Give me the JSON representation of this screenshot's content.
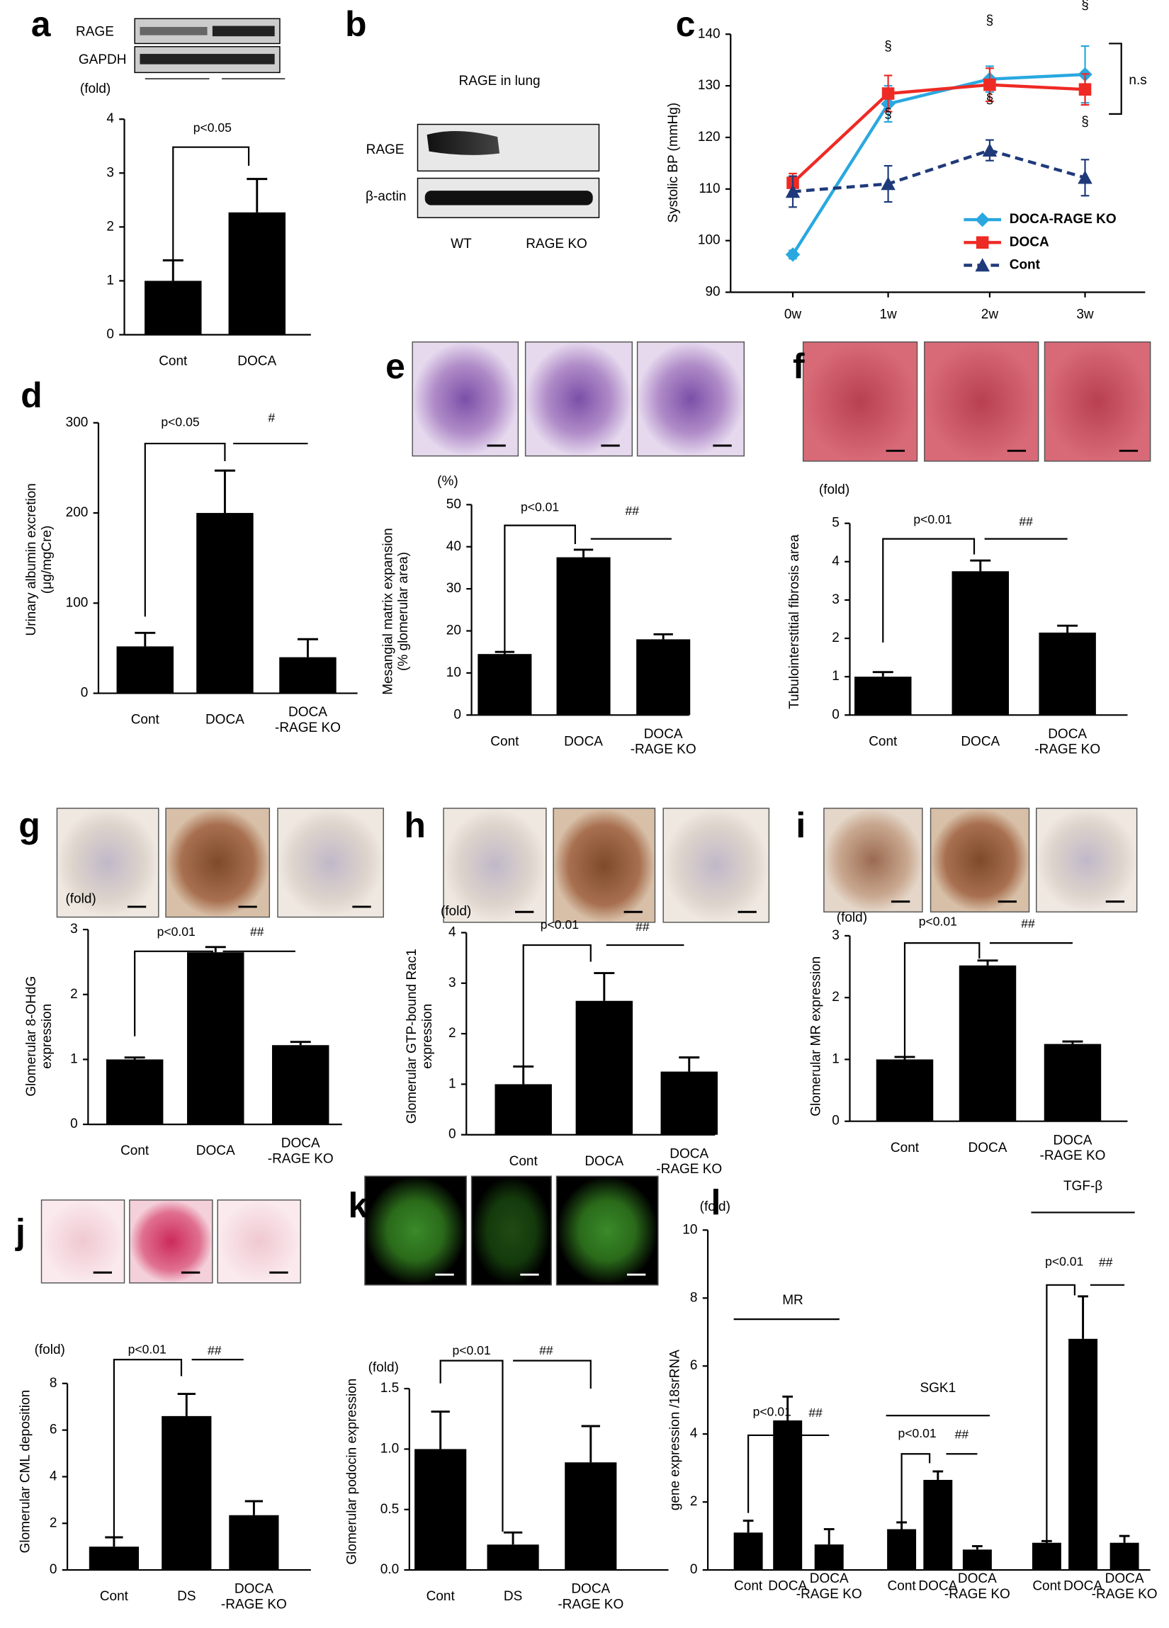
{
  "chart_data": [
    {
      "panel": "a",
      "type": "bar",
      "categories": [
        "Cont",
        "DOCA"
      ],
      "series": [
        {
          "values": [
            1.0,
            2.27
          ],
          "errors": [
            0.38,
            0.62
          ],
          "color": "#000000"
        }
      ],
      "ylim": [
        0,
        4
      ],
      "yticks": [
        0,
        1,
        2,
        3,
        4
      ],
      "unit": "(fold)",
      "annotations": [
        "p<0.05"
      ]
    },
    {
      "panel": "c",
      "type": "line",
      "categories": [
        "0w",
        "1w",
        "2w",
        "3w"
      ],
      "ylabel": "Systolic BP (mmHg)",
      "ylim": [
        90,
        140
      ],
      "yticks": [
        90,
        100,
        110,
        120,
        130,
        140
      ],
      "legend": "lower right",
      "series": [
        {
          "name": "DOCA-RAGE KO",
          "color": "#29a8e0",
          "marker": "diamond",
          "dashed": false,
          "values": [
            97.3,
            126.5,
            131.3,
            132.2
          ],
          "errors": [
            0.8,
            3.5,
            2.5,
            5.5
          ]
        },
        {
          "name": "DOCA",
          "color": "#ee2a24",
          "marker": "square",
          "dashed": false,
          "values": [
            111.2,
            128.5,
            130.2,
            129.3
          ],
          "errors": [
            1.8,
            3.5,
            3.2,
            3.0
          ]
        },
        {
          "name": "Cont",
          "color": "#1f3a7a",
          "marker": "triangle",
          "dashed": true,
          "values": [
            109.5,
            111.0,
            117.5,
            112.2
          ],
          "errors": [
            3.0,
            3.5,
            2.0,
            3.5
          ]
        }
      ],
      "annotations": [
        "§",
        "§",
        "§",
        "§",
        "§",
        "§",
        "n.s"
      ]
    },
    {
      "panel": "d",
      "type": "bar",
      "categories": [
        "Cont",
        "DOCA",
        "DOCA\n-RAGE KO"
      ],
      "series": [
        {
          "values": [
            52,
            200,
            40
          ],
          "errors": [
            15,
            47,
            20
          ],
          "color": "#000000"
        }
      ],
      "ylim": [
        0,
        300
      ],
      "yticks": [
        0,
        100,
        200,
        300
      ],
      "ylabel": "Urinary albumin excretion\n(μg/mgCre)",
      "annotations": [
        "p<0.05",
        "#"
      ]
    },
    {
      "panel": "e",
      "type": "bar",
      "categories": [
        "Cont",
        "DOCA",
        "DOCA\n-RAGE KO"
      ],
      "series": [
        {
          "values": [
            14.5,
            37.5,
            18.0
          ],
          "errors": [
            0.5,
            1.8,
            1.2
          ],
          "color": "#000000"
        }
      ],
      "ylim": [
        0,
        50
      ],
      "yticks": [
        0,
        10,
        20,
        30,
        40,
        50
      ],
      "unit": "(%)",
      "ylabel": "Mesangial matrix expansion\n(% glomerular area)",
      "annotations": [
        "p<0.01",
        "##"
      ]
    },
    {
      "panel": "f",
      "type": "bar",
      "categories": [
        "Cont",
        "DOCA",
        "DOCA\n-RAGE KO"
      ],
      "series": [
        {
          "values": [
            1.0,
            3.75,
            2.15
          ],
          "errors": [
            0.12,
            0.28,
            0.18
          ],
          "color": "#000000"
        }
      ],
      "ylim": [
        0,
        5
      ],
      "yticks": [
        0,
        1,
        2,
        3,
        4,
        5
      ],
      "unit": "(fold)",
      "ylabel": "Tubulointerstitial fibrosis area",
      "annotations": [
        "p<0.01",
        "##"
      ]
    },
    {
      "panel": "g",
      "type": "bar",
      "categories": [
        "Cont",
        "DOCA",
        "DOCA\n-RAGE KO"
      ],
      "series": [
        {
          "values": [
            1.0,
            2.65,
            1.22
          ],
          "errors": [
            0.03,
            0.08,
            0.05
          ],
          "color": "#000000"
        }
      ],
      "ylim": [
        0,
        3
      ],
      "yticks": [
        0,
        1,
        2,
        3
      ],
      "unit": "(fold)",
      "ylabel": "Glomerular 8-OHdG\nexpression",
      "annotations": [
        "p<0.01",
        "##"
      ]
    },
    {
      "panel": "h",
      "type": "bar",
      "categories": [
        "Cont",
        "DOCA",
        "DOCA\n-RAGE KO"
      ],
      "series": [
        {
          "values": [
            1.0,
            2.65,
            1.25
          ],
          "errors": [
            0.35,
            0.55,
            0.28
          ],
          "color": "#000000"
        }
      ],
      "ylim": [
        0,
        4
      ],
      "yticks": [
        0,
        1,
        2,
        3,
        4
      ],
      "unit": "(fold)",
      "ylabel": "Glomerular GTP-bound Rac1\nexpression",
      "annotations": [
        "p<0.01",
        "##"
      ]
    },
    {
      "panel": "i",
      "type": "bar",
      "categories": [
        "Cont",
        "DOCA",
        "DOCA\n-RAGE KO"
      ],
      "series": [
        {
          "values": [
            1.0,
            2.52,
            1.25
          ],
          "errors": [
            0.04,
            0.08,
            0.04
          ],
          "color": "#000000"
        }
      ],
      "ylim": [
        0,
        3
      ],
      "yticks": [
        0,
        1,
        2,
        3
      ],
      "unit": "(fold)",
      "ylabel": "Glomerular MR expression",
      "annotations": [
        "p<0.01",
        "##"
      ]
    },
    {
      "panel": "j",
      "type": "bar",
      "categories": [
        "Cont",
        "DS",
        "DOCA\n-RAGE KO"
      ],
      "series": [
        {
          "values": [
            1.0,
            6.6,
            2.35
          ],
          "errors": [
            0.4,
            0.95,
            0.6
          ],
          "color": "#000000"
        }
      ],
      "ylim": [
        0,
        8
      ],
      "yticks": [
        0,
        2,
        4,
        6,
        8
      ],
      "unit": "(fold)",
      "ylabel": "Glomerular CML deposition",
      "annotations": [
        "p<0.01",
        "##"
      ]
    },
    {
      "panel": "k",
      "type": "bar",
      "categories": [
        "Cont",
        "DS",
        "DOCA\n-RAGE KO"
      ],
      "series": [
        {
          "values": [
            1.0,
            0.21,
            0.89
          ],
          "errors": [
            0.31,
            0.1,
            0.3
          ],
          "color": "#000000"
        }
      ],
      "ylim": [
        0,
        1.5
      ],
      "yticks": [
        {
          "value": 0,
          "label": "0.0"
        },
        0.5,
        {
          "value": 1,
          "label": "1.0"
        },
        1.5
      ],
      "unit": "(fold)",
      "ylabel": "Glomerular podocin expression",
      "annotations": [
        "p<0.01",
        "##"
      ]
    },
    {
      "panel": "l",
      "type": "grouped_bar",
      "categories": [
        "Cont",
        "DOCA",
        "DOCA\n-RAGE KO"
      ],
      "ylim": [
        0,
        10
      ],
      "yticks": [
        0,
        2,
        4,
        6,
        8,
        10
      ],
      "unit": "(fold)",
      "ylabel": "gene expression /18srRNA",
      "color": "#000000",
      "groups": [
        {
          "name": "MR",
          "values": [
            1.1,
            4.4,
            0.75
          ],
          "errors": [
            0.35,
            0.7,
            0.45
          ],
          "annotations": [
            "p<0.01",
            "##"
          ]
        },
        {
          "name": "SGK1",
          "values": [
            1.2,
            2.65,
            0.6
          ],
          "errors": [
            0.2,
            0.25,
            0.1
          ],
          "annotations": [
            "p<0.01",
            "##"
          ]
        },
        {
          "name": "TGF-β",
          "values": [
            0.8,
            6.8,
            0.8
          ],
          "errors": [
            0.05,
            1.25,
            0.2
          ],
          "annotations": [
            "p<0.01",
            "##"
          ]
        }
      ]
    }
  ],
  "blots": {
    "a": {
      "rows": [
        "RAGE",
        "GAPDH"
      ]
    },
    "b": {
      "panel": "b",
      "title": "RAGE in lung",
      "rows": [
        "RAGE",
        "β-actin"
      ],
      "lanes": [
        "WT",
        "RAGE KO"
      ]
    }
  }
}
